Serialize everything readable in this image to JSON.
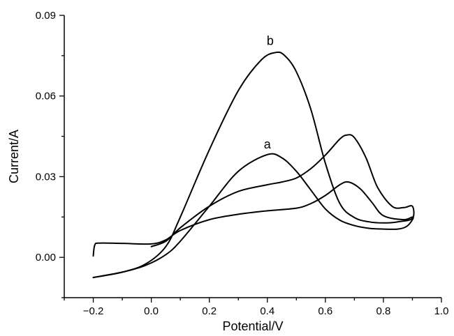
{
  "chart_data": {
    "type": "line",
    "title": "",
    "xlabel": "Potential/V",
    "ylabel": "Current/A",
    "xlim": [
      -0.3,
      1.0
    ],
    "ylim": [
      -0.015,
      0.09
    ],
    "x_ticks": [
      -0.2,
      0.0,
      0.2,
      0.4,
      0.6,
      0.8,
      1.0
    ],
    "x_tick_labels": [
      "−0.2",
      "0.0",
      "0.2",
      "0.4",
      "0.6",
      "0.8",
      "1.0"
    ],
    "y_ticks": [
      0.0,
      0.03,
      0.06,
      0.09
    ],
    "y_tick_labels": [
      "0.00",
      "0.03",
      "0.06",
      "0.09"
    ],
    "grid": false,
    "annotations": [
      {
        "text": "a",
        "x": 0.4,
        "y": 0.0405
      },
      {
        "text": "b",
        "x": 0.41,
        "y": 0.079
      }
    ],
    "series": [
      {
        "id": "a",
        "points": [
          [
            -0.2,
            -0.0075
          ],
          [
            -0.1,
            -0.0055
          ],
          [
            -0.02,
            -0.003
          ],
          [
            0.05,
            0.001
          ],
          [
            0.1,
            0.006
          ],
          [
            0.2,
            0.019
          ],
          [
            0.3,
            0.032
          ],
          [
            0.4,
            0.0382
          ],
          [
            0.45,
            0.037
          ],
          [
            0.5,
            0.032
          ],
          [
            0.55,
            0.025
          ],
          [
            0.6,
            0.018
          ],
          [
            0.65,
            0.0138
          ],
          [
            0.7,
            0.0118
          ],
          [
            0.75,
            0.0108
          ],
          [
            0.8,
            0.0105
          ],
          [
            0.85,
            0.0105
          ],
          [
            0.88,
            0.0115
          ],
          [
            0.9,
            0.014
          ],
          [
            0.9,
            0.015
          ],
          [
            0.87,
            0.014
          ],
          [
            0.8,
            0.0155
          ],
          [
            0.76,
            0.0205
          ],
          [
            0.72,
            0.0255
          ],
          [
            0.68,
            0.028
          ],
          [
            0.65,
            0.027
          ],
          [
            0.6,
            0.023
          ],
          [
            0.55,
            0.02
          ],
          [
            0.5,
            0.0183
          ],
          [
            0.4,
            0.0173
          ],
          [
            0.3,
            0.016
          ],
          [
            0.2,
            0.014
          ],
          [
            0.1,
            0.01
          ],
          [
            0.05,
            0.0065
          ],
          [
            0.0,
            0.005
          ],
          [
            -0.1,
            0.0052
          ],
          [
            -0.18,
            0.0053
          ],
          [
            -0.195,
            0.0045
          ],
          [
            -0.2,
            0.0005
          ]
        ]
      },
      {
        "id": "b",
        "points": [
          [
            -0.2,
            -0.0075
          ],
          [
            -0.1,
            -0.0055
          ],
          [
            -0.02,
            -0.0025
          ],
          [
            0.05,
            0.004
          ],
          [
            0.1,
            0.015
          ],
          [
            0.2,
            0.04
          ],
          [
            0.3,
            0.062
          ],
          [
            0.38,
            0.0735
          ],
          [
            0.43,
            0.0762
          ],
          [
            0.46,
            0.075
          ],
          [
            0.5,
            0.069
          ],
          [
            0.55,
            0.055
          ],
          [
            0.6,
            0.035
          ],
          [
            0.65,
            0.02
          ],
          [
            0.7,
            0.0148
          ],
          [
            0.75,
            0.0132
          ],
          [
            0.8,
            0.0128
          ],
          [
            0.85,
            0.0132
          ],
          [
            0.9,
            0.0145
          ],
          [
            0.9,
            0.019
          ],
          [
            0.87,
            0.0185
          ],
          [
            0.83,
            0.019
          ],
          [
            0.78,
            0.026
          ],
          [
            0.74,
            0.037
          ],
          [
            0.7,
            0.0445
          ],
          [
            0.675,
            0.0455
          ],
          [
            0.65,
            0.044
          ],
          [
            0.6,
            0.038
          ],
          [
            0.55,
            0.033
          ],
          [
            0.5,
            0.0295
          ],
          [
            0.45,
            0.028
          ],
          [
            0.4,
            0.027
          ],
          [
            0.3,
            0.0245
          ],
          [
            0.2,
            0.019
          ],
          [
            0.1,
            0.011
          ],
          [
            0.05,
            0.006
          ],
          [
            0.0,
            0.004
          ]
        ]
      }
    ]
  }
}
